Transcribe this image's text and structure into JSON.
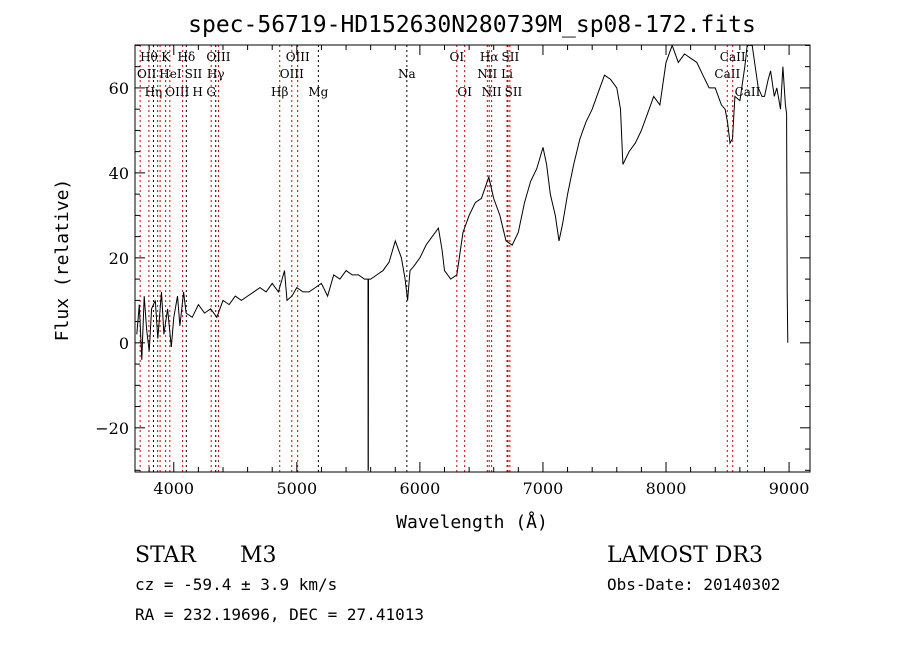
{
  "chart_data": {
    "type": "line",
    "title": "spec-56719-HD152630N280739M_sp08-172.fits",
    "xlabel": "Wavelength (Å)",
    "ylabel": "Flux (relative)",
    "xlim": [
      3685,
      9170
    ],
    "ylim": [
      -30.4,
      70.1
    ],
    "xticks": [
      4000,
      5000,
      6000,
      7000,
      8000,
      9000
    ],
    "yticks": [
      -20,
      0,
      20,
      40,
      60
    ],
    "grid": false,
    "series": [
      {
        "name": "spectrum",
        "x": [
          3700,
          3720,
          3740,
          3760,
          3780,
          3800,
          3820,
          3850,
          3870,
          3900,
          3920,
          3950,
          3980,
          4000,
          4030,
          4050,
          4080,
          4100,
          4150,
          4200,
          4250,
          4300,
          4350,
          4400,
          4450,
          4500,
          4550,
          4600,
          4650,
          4700,
          4750,
          4800,
          4850,
          4880,
          4900,
          4920,
          4960,
          5000,
          5050,
          5100,
          5150,
          5200,
          5250,
          5300,
          5350,
          5400,
          5450,
          5500,
          5550,
          5578,
          5579,
          5581,
          5582,
          5600,
          5650,
          5700,
          5750,
          5800,
          5850,
          5880,
          5900,
          5920,
          5950,
          6000,
          6050,
          6100,
          6150,
          6180,
          6200,
          6250,
          6300,
          6350,
          6400,
          6450,
          6500,
          6560,
          6600,
          6650,
          6700,
          6750,
          6800,
          6850,
          6900,
          6950,
          7000,
          7030,
          7060,
          7100,
          7130,
          7160,
          7200,
          7250,
          7300,
          7350,
          7400,
          7450,
          7500,
          7550,
          7600,
          7630,
          7650,
          7700,
          7750,
          7800,
          7850,
          7900,
          7950,
          8000,
          8050,
          8100,
          8150,
          8200,
          8250,
          8300,
          8350,
          8400,
          8450,
          8480,
          8500,
          8520,
          8540,
          8560,
          8600,
          8640,
          8660,
          8700,
          8720,
          8750,
          8780,
          8800,
          8830,
          8850,
          8880,
          8900,
          8930,
          8950,
          8970,
          8980,
          8985,
          8990
        ],
        "y": [
          2,
          9,
          -4,
          11,
          3,
          -2,
          8,
          10,
          1,
          12,
          2,
          8,
          -1,
          6,
          11,
          4,
          12,
          7,
          6,
          9,
          7,
          8,
          6,
          10,
          9,
          11,
          10,
          11,
          12,
          13,
          12,
          14,
          12,
          15,
          17,
          10,
          11,
          13,
          12,
          12,
          13,
          14,
          11,
          16,
          15,
          17,
          16,
          16,
          15,
          15,
          -30,
          -30,
          15,
          15,
          16,
          17,
          19,
          24,
          20,
          15,
          10,
          17,
          18,
          20,
          23,
          25,
          27,
          22,
          17,
          15,
          16,
          26,
          30,
          33,
          34,
          39,
          34,
          30,
          24,
          23,
          26,
          33,
          38,
          41,
          46,
          42,
          35,
          30,
          24,
          28,
          35,
          42,
          48,
          52,
          55,
          59,
          63,
          62,
          60,
          55,
          42,
          45,
          47,
          50,
          54,
          58,
          56,
          66,
          70,
          66,
          68,
          67,
          66,
          63,
          60,
          60,
          56,
          55,
          52,
          47,
          48,
          58,
          57,
          65,
          70,
          70,
          66,
          60,
          58,
          58,
          62,
          64,
          58,
          60,
          55,
          65,
          56,
          54,
          12,
          0
        ]
      }
    ],
    "lines": [
      {
        "label": "OII",
        "wl": 3727,
        "row": 2,
        "color": "#cc0000"
      },
      {
        "label": "Hθ",
        "wl": 3798,
        "row": 1,
        "color": "#cc0000"
      },
      {
        "label": "OIII",
        "wl": 3869,
        "row": 3,
        "color": "#cc0000"
      },
      {
        "label": "Hη",
        "wl": 3835,
        "row": 3,
        "color": "#000000"
      },
      {
        "label": "HeI",
        "wl": 3889,
        "row": 2,
        "color": "#cc0000"
      },
      {
        "label": "K",
        "wl": 3934,
        "row": 1,
        "color": "#cc0000"
      },
      {
        "label": "H",
        "wl": 3968,
        "row": 3,
        "color": "#cc0000"
      },
      {
        "label": "SII",
        "wl": 4072,
        "row": 2,
        "color": "#cc0000"
      },
      {
        "label": "Hδ",
        "wl": 4102,
        "row": 1,
        "color": "#000000"
      },
      {
        "label": "G",
        "wl": 4304,
        "row": 3,
        "color": "#cc0000"
      },
      {
        "label": "Hγ",
        "wl": 4341,
        "row": 2,
        "color": "#000000"
      },
      {
        "label": "OIII",
        "wl": 4363,
        "row": 1,
        "color": "#cc0000"
      },
      {
        "label": "Hβ",
        "wl": 4861,
        "row": 3,
        "color": "#cc0000"
      },
      {
        "label": "OIII",
        "wl": 4959,
        "row": 2,
        "color": "#cc0000"
      },
      {
        "label": "OIII",
        "wl": 5007,
        "row": 1,
        "color": "#cc0000"
      },
      {
        "label": "Mg",
        "wl": 5175,
        "row": 3,
        "color": "#000000"
      },
      {
        "label": "Na",
        "wl": 5894,
        "row": 2,
        "color": "#000000"
      },
      {
        "label": "OI",
        "wl": 6300,
        "row": 1,
        "color": "#cc0000"
      },
      {
        "label": "OI",
        "wl": 6364,
        "row": 3,
        "color": "#cc0000"
      },
      {
        "label": "NII",
        "wl": 6548,
        "row": 2,
        "color": "#cc0000"
      },
      {
        "label": "Hα",
        "wl": 6563,
        "row": 1,
        "color": "#cc0000"
      },
      {
        "label": "NII",
        "wl": 6583,
        "row": 3,
        "color": "#cc0000"
      },
      {
        "label": "Li",
        "wl": 6708,
        "row": 2,
        "color": "#cc0000"
      },
      {
        "label": "SII",
        "wl": 6716,
        "row": 1,
        "color": "#cc0000"
      },
      {
        "label": "SII",
        "wl": 6731,
        "row": 3,
        "color": "#cc0000"
      },
      {
        "label": "CaII",
        "wl": 8498,
        "row": 2,
        "color": "#cc0000"
      },
      {
        "label": "CaII",
        "wl": 8542,
        "row": 1,
        "color": "#cc0000"
      },
      {
        "label": "CaII",
        "wl": 8662,
        "row": 3,
        "color": "#cc0000"
      }
    ]
  },
  "info": {
    "object_class": "STAR",
    "subclass": "M3",
    "cz": "cz = -59.4 ± 3.9 km/s",
    "coords": "RA = 232.19696, DEC =  27.41013",
    "survey": "LAMOST DR3",
    "obs_date": "Obs-Date: 20140302"
  }
}
